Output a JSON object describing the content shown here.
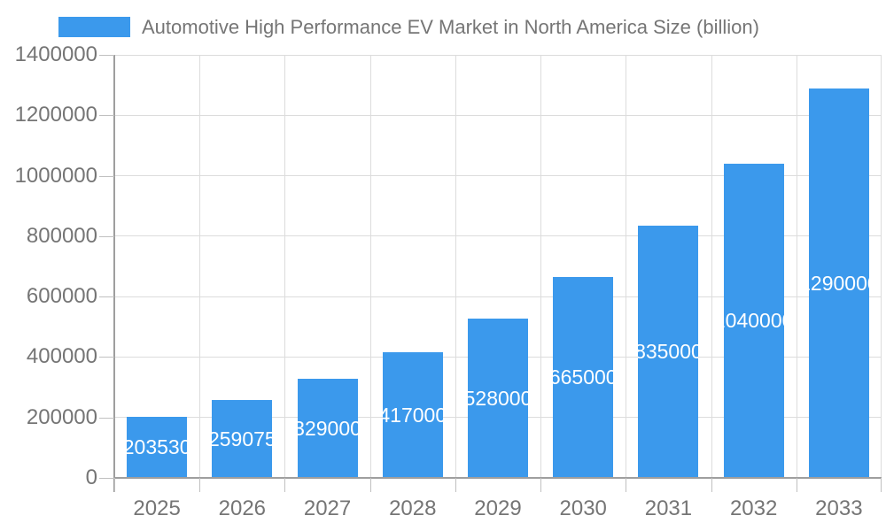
{
  "chart_data": {
    "type": "bar",
    "title": "Automotive High Performance EV Market in North America Size (billion)",
    "categories": [
      "2025",
      "2026",
      "2027",
      "2028",
      "2029",
      "2030",
      "2031",
      "2032",
      "2033"
    ],
    "values": [
      203530,
      259075,
      329000,
      417000,
      528000,
      665000,
      835000,
      1040000,
      1290000
    ],
    "series": [
      {
        "name": "Automotive High Performance EV Market in North America Size (billion)",
        "values": [
          203530,
          259075,
          329000,
          417000,
          528000,
          665000,
          835000,
          1040000,
          1290000
        ]
      }
    ],
    "xlabel": "",
    "ylabel": "",
    "ylim": [
      0,
      1400000
    ],
    "ytick_step": 200000,
    "yticks": [
      0,
      200000,
      400000,
      600000,
      800000,
      1000000,
      1200000,
      1400000
    ],
    "grid": true,
    "legend_position": "top-left",
    "bar_value_labels_shown": true,
    "colors": {
      "bar": "#3b99ec",
      "text": "#757575",
      "bar_label_text": "#ffffff",
      "gridline": "#dcdcdc",
      "axis_line": "#9e9e9e",
      "tick": "#c0c0c0",
      "background": "#ffffff"
    }
  }
}
